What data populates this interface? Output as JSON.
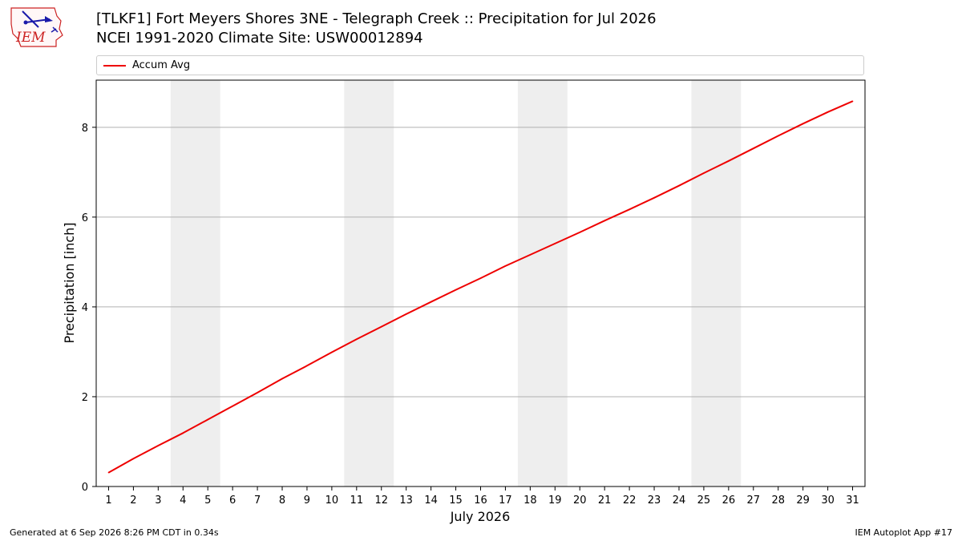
{
  "header": {
    "logo_text": "IEM",
    "title": "[TLKF1] Fort Meyers Shores 3NE - Telegraph Creek :: Precipitation for Jul 2026",
    "subtitle": "NCEI 1991-2020 Climate Site: USW00012894"
  },
  "footer": {
    "generated": "Generated at 6 Sep 2026 8:26 PM CDT in 0.34s",
    "app": "IEM Autoplot App #17"
  },
  "chart_data": {
    "type": "line",
    "xlabel": "July 2026",
    "ylabel": "Precipitation [inch]",
    "x": [
      1,
      2,
      3,
      4,
      5,
      6,
      7,
      8,
      9,
      10,
      11,
      12,
      13,
      14,
      15,
      16,
      17,
      18,
      19,
      20,
      21,
      22,
      23,
      24,
      25,
      26,
      27,
      28,
      29,
      30,
      31
    ],
    "xlim": [
      0.5,
      31.5
    ],
    "ylim": [
      0,
      9.05
    ],
    "yticks": [
      0,
      2,
      4,
      6,
      8
    ],
    "grid": "horizontal",
    "legend_position": "top",
    "weekend_shading": [
      [
        3.5,
        5.5
      ],
      [
        10.5,
        12.5
      ],
      [
        17.5,
        19.5
      ],
      [
        24.5,
        26.5
      ]
    ],
    "series": [
      {
        "name": "Accum Avg",
        "color": "#ee0000",
        "values": [
          0.31,
          0.62,
          0.91,
          1.19,
          1.49,
          1.79,
          2.09,
          2.4,
          2.69,
          2.99,
          3.28,
          3.56,
          3.84,
          4.11,
          4.38,
          4.64,
          4.91,
          5.16,
          5.41,
          5.66,
          5.92,
          6.17,
          6.43,
          6.7,
          6.98,
          7.25,
          7.53,
          7.81,
          8.08,
          8.34,
          8.58
        ]
      }
    ],
    "colors": {
      "line": "#ee0000",
      "weekend_band": "#eeeeee",
      "grid": "#b0b0b0",
      "logo": "#cc2222"
    }
  }
}
